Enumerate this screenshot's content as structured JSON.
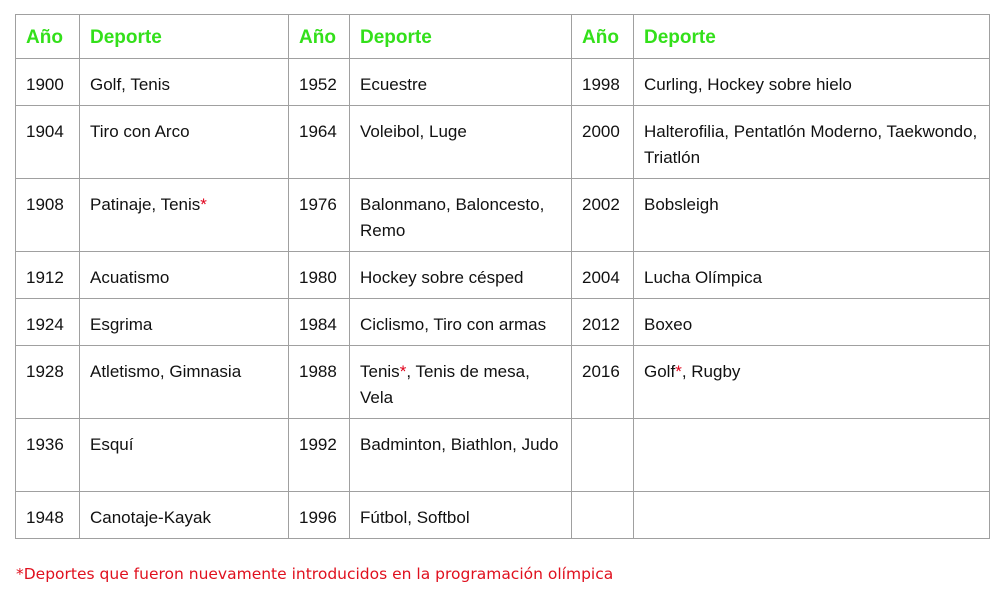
{
  "table": {
    "headers": [
      "Año",
      "Deporte",
      "Año",
      "Deporte",
      "Año",
      "Deporte"
    ],
    "footnote_mark": "*",
    "rows": [
      [
        {
          "year": "1900",
          "sport": [
            {
              "t": "Golf, Tenis"
            }
          ]
        },
        {
          "year": "1952",
          "sport": [
            {
              "t": "Ecuestre"
            }
          ]
        },
        {
          "year": "1998",
          "sport": [
            {
              "t": "Curling, Hockey sobre hielo"
            }
          ]
        }
      ],
      [
        {
          "year": "1904",
          "sport": [
            {
              "t": "Tiro con Arco"
            }
          ]
        },
        {
          "year": "1964",
          "sport": [
            {
              "t": "Voleibol, Luge"
            }
          ]
        },
        {
          "year": "2000",
          "sport": [
            {
              "t": "Halterofilia, Pentatlón Moderno, Taekwondo, Triatlón"
            }
          ]
        }
      ],
      [
        {
          "year": "1908",
          "sport": [
            {
              "t": "Patinaje, Tenis",
              "star": true
            }
          ]
        },
        {
          "year": "1976",
          "sport": [
            {
              "t": "Balonmano, Baloncesto, Remo"
            }
          ]
        },
        {
          "year": "2002",
          "sport": [
            {
              "t": "Bobsleigh"
            }
          ]
        }
      ],
      [
        {
          "year": "1912",
          "sport": [
            {
              "t": "Acuatismo"
            }
          ]
        },
        {
          "year": "1980",
          "sport": [
            {
              "t": "Hockey sobre césped"
            }
          ]
        },
        {
          "year": "2004",
          "sport": [
            {
              "t": "Lucha Olímpica"
            }
          ]
        }
      ],
      [
        {
          "year": "1924",
          "sport": [
            {
              "t": "Esgrima"
            }
          ]
        },
        {
          "year": "1984",
          "sport": [
            {
              "t": "Ciclismo, Tiro con armas"
            }
          ]
        },
        {
          "year": "2012",
          "sport": [
            {
              "t": "Boxeo"
            }
          ]
        }
      ],
      [
        {
          "year": "1928",
          "sport": [
            {
              "t": "Atletismo, Gimnasia"
            }
          ]
        },
        {
          "year": "1988",
          "sport": [
            {
              "t": "Tenis",
              "star": true
            },
            {
              "t": ", Tenis de mesa, Vela"
            }
          ]
        },
        {
          "year": "2016",
          "sport": [
            {
              "t": "Golf",
              "star": true
            },
            {
              "t": ", Rugby"
            }
          ]
        }
      ],
      [
        {
          "year": "1936",
          "sport": [
            {
              "t": "Esquí"
            }
          ]
        },
        {
          "year": "1992",
          "sport": [
            {
              "t": "Badminton, Biathlon, Judo"
            }
          ]
        },
        {
          "year": "",
          "sport": []
        }
      ],
      [
        {
          "year": "1948",
          "sport": [
            {
              "t": "Canotaje-Kayak"
            }
          ]
        },
        {
          "year": "1996",
          "sport": [
            {
              "t": "Fútbol, Softbol"
            }
          ]
        },
        {
          "year": "",
          "sport": []
        }
      ]
    ],
    "row_lines": [
      1,
      2,
      2,
      1,
      1,
      2,
      2,
      1
    ]
  },
  "footnote": "*Deportes que fueron nuevamente introducidos en la programación olímpica",
  "colors": {
    "header": "#33e01a",
    "footnote": "#e0101e",
    "border": "#a0a0a0"
  }
}
